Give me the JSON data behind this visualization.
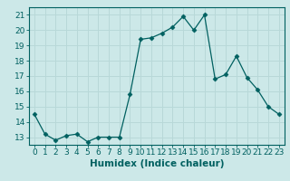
{
  "x": [
    0,
    1,
    2,
    3,
    4,
    5,
    6,
    7,
    8,
    9,
    10,
    11,
    12,
    13,
    14,
    15,
    16,
    17,
    18,
    19,
    20,
    21,
    22,
    23
  ],
  "y": [
    14.5,
    13.2,
    12.8,
    13.1,
    13.2,
    12.7,
    13.0,
    13.0,
    13.0,
    15.8,
    19.4,
    19.5,
    19.8,
    20.2,
    20.9,
    20.0,
    21.0,
    16.8,
    17.1,
    18.3,
    16.9,
    16.1,
    15.0,
    14.5
  ],
  "line_color": "#006060",
  "marker": "D",
  "marker_size": 2.5,
  "bg_color": "#cce8e8",
  "grid_color": "#b8d8d8",
  "xlabel": "Humidex (Indice chaleur)",
  "xlim": [
    -0.5,
    23.5
  ],
  "ylim": [
    12.5,
    21.5
  ],
  "yticks": [
    13,
    14,
    15,
    16,
    17,
    18,
    19,
    20,
    21
  ],
  "xticks": [
    0,
    1,
    2,
    3,
    4,
    5,
    6,
    7,
    8,
    9,
    10,
    11,
    12,
    13,
    14,
    15,
    16,
    17,
    18,
    19,
    20,
    21,
    22,
    23
  ],
  "tick_fontsize": 6.5,
  "xlabel_fontsize": 7.5
}
